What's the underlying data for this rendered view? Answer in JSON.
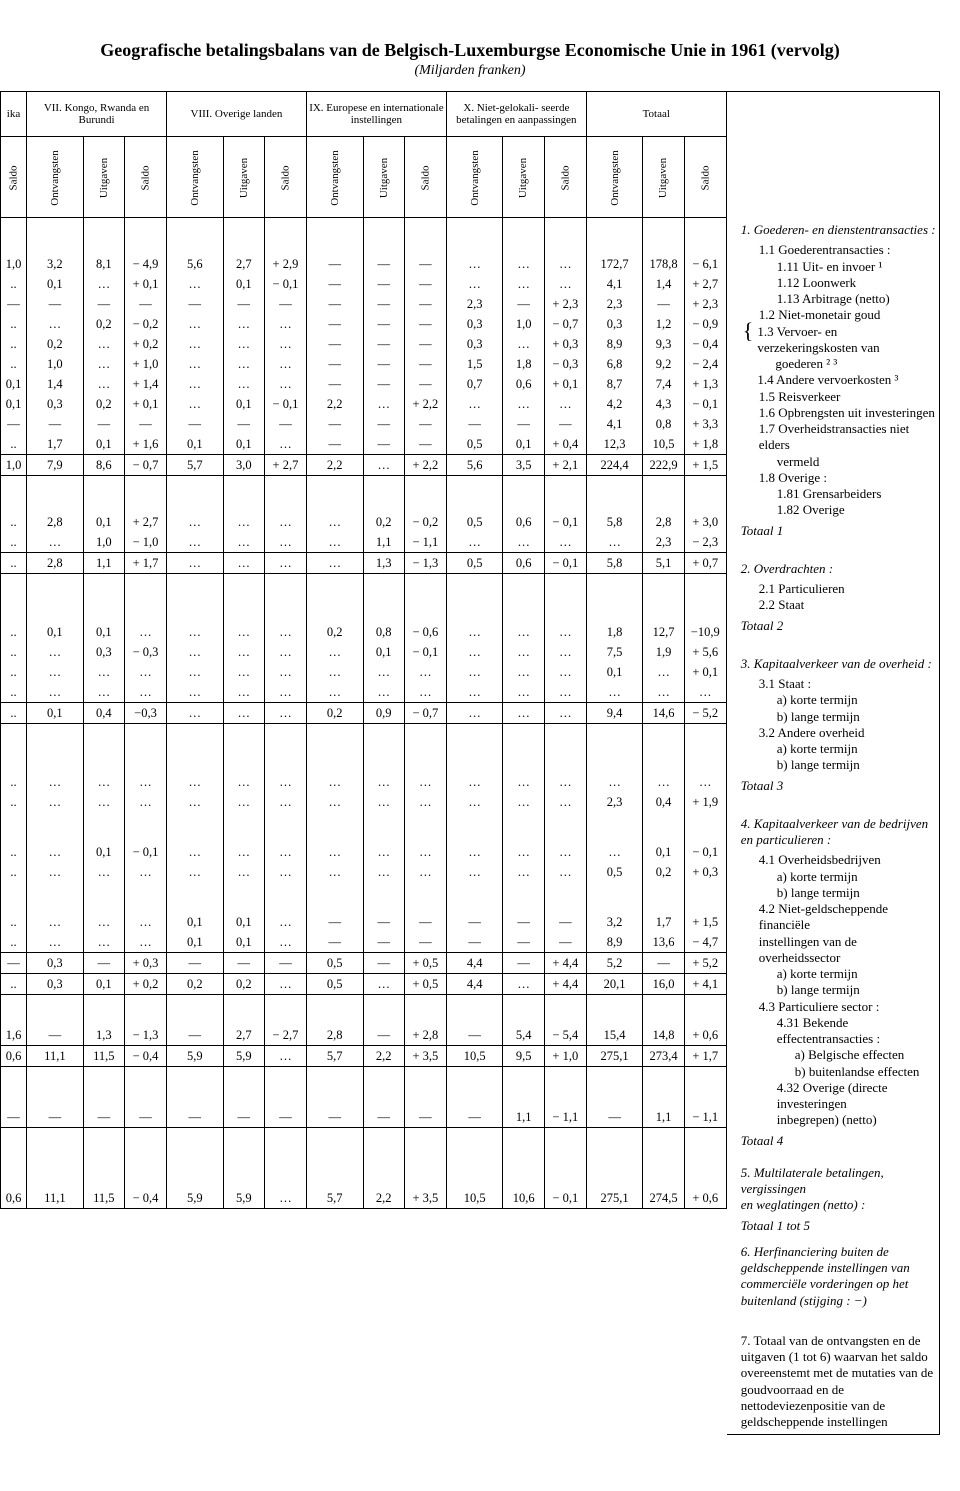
{
  "title": "Geografische betalingsbalans van de Belgisch-Luxemburgse Economische Unie in 1961 (vervolg)",
  "subtitle": "(Miljarden franken)",
  "col_ika": "ika",
  "groups": {
    "g7": "VII. Kongo,\nRwanda en Burundi",
    "g8": "VIII. Overige landen",
    "g9": "IX. Europese en\ninternationale\ninstellingen",
    "g10": "X. Niet-gelokali-\nseerde betalingen\nen aanpassingen",
    "gt": "Totaal"
  },
  "subheads": {
    "o": "Ontvangsten",
    "u": "Uitgaven",
    "s": "Saldo"
  },
  "rows": [
    [
      "1,0",
      "3,2",
      "8,1",
      "− 4,9",
      "5,6",
      "2,7",
      "+ 2,9",
      "—",
      "—",
      "—",
      "…",
      "…",
      "…",
      "172,7",
      "178,8",
      "− 6,1"
    ],
    [
      "..",
      "0,1",
      "…",
      "+ 0,1",
      "…",
      "0,1",
      "− 0,1",
      "—",
      "—",
      "—",
      "…",
      "…",
      "…",
      "4,1",
      "1,4",
      "+ 2,7"
    ],
    [
      "—",
      "—",
      "—",
      "—",
      "—",
      "—",
      "—",
      "—",
      "—",
      "—",
      "2,3",
      "—",
      "+ 2,3",
      "2,3",
      "—",
      "+ 2,3"
    ],
    [
      "..",
      "…",
      "0,2",
      "− 0,2",
      "…",
      "…",
      "…",
      "—",
      "—",
      "—",
      "0,3",
      "1,0",
      "− 0,7",
      "0,3",
      "1,2",
      "− 0,9"
    ],
    [
      "..",
      "0,2",
      "…",
      "+ 0,2",
      "…",
      "…",
      "…",
      "—",
      "—",
      "—",
      "0,3",
      "…",
      "+ 0,3",
      "8,9",
      "9,3",
      "− 0,4"
    ],
    [
      "..",
      "1,0",
      "…",
      "+ 1,0",
      "…",
      "…",
      "…",
      "—",
      "—",
      "—",
      "1,5",
      "1,8",
      "− 0,3",
      "6,8",
      "9,2",
      "− 2,4"
    ],
    [
      "0,1",
      "1,4",
      "…",
      "+ 1,4",
      "…",
      "…",
      "…",
      "—",
      "—",
      "—",
      "0,7",
      "0,6",
      "+ 0,1",
      "8,7",
      "7,4",
      "+ 1,3"
    ],
    [
      "0,1",
      "0,3",
      "0,2",
      "+ 0,1",
      "…",
      "0,1",
      "− 0,1",
      "2,2",
      "…",
      "+ 2,2",
      "…",
      "…",
      "…",
      "4,2",
      "4,3",
      "− 0,1"
    ],
    [
      "—",
      "—",
      "—",
      "—",
      "—",
      "—",
      "—",
      "—",
      "—",
      "—",
      "—",
      "—",
      "—",
      "4,1",
      "0,8",
      "+ 3,3"
    ],
    [
      "..",
      "1,7",
      "0,1",
      "+ 1,6",
      "0,1",
      "0,1",
      "…",
      "—",
      "—",
      "—",
      "0,5",
      "0,1",
      "+ 0,4",
      "12,3",
      "10,5",
      "+ 1,8"
    ]
  ],
  "row_t1": [
    "1,0",
    "7,9",
    "8,6",
    "− 0,7",
    "5,7",
    "3,0",
    "+ 2,7",
    "2,2",
    "…",
    "+ 2,2",
    "5,6",
    "3,5",
    "+ 2,1",
    "224,4",
    "222,9",
    "+ 1,5"
  ],
  "rows2": [
    [
      "..",
      "2,8",
      "0,1",
      "+ 2,7",
      "…",
      "…",
      "…",
      "…",
      "0,2",
      "− 0,2",
      "0,5",
      "0,6",
      "− 0,1",
      "5,8",
      "2,8",
      "+ 3,0"
    ],
    [
      "..",
      "…",
      "1,0",
      "− 1,0",
      "…",
      "…",
      "…",
      "…",
      "1,1",
      "− 1,1",
      "…",
      "…",
      "…",
      "…",
      "2,3",
      "− 2,3"
    ]
  ],
  "row_t2": [
    "..",
    "2,8",
    "1,1",
    "+ 1,7",
    "…",
    "…",
    "…",
    "…",
    "1,3",
    "− 1,3",
    "0,5",
    "0,6",
    "− 0,1",
    "5,8",
    "5,1",
    "+ 0,7"
  ],
  "rows3": [
    [
      "..",
      "0,1",
      "0,1",
      "…",
      "…",
      "…",
      "…",
      "0,2",
      "0,8",
      "− 0,6",
      "…",
      "…",
      "…",
      "1,8",
      "12,7",
      "−10,9"
    ],
    [
      "..",
      "…",
      "0,3",
      "− 0,3",
      "…",
      "…",
      "…",
      "…",
      "0,1",
      "− 0,1",
      "…",
      "…",
      "…",
      "7,5",
      "1,9",
      "+ 5,6"
    ],
    [
      "..",
      "…",
      "…",
      "…",
      "…",
      "…",
      "…",
      "…",
      "…",
      "…",
      "…",
      "…",
      "…",
      "0,1",
      "…",
      "+ 0,1"
    ],
    [
      "..",
      "…",
      "…",
      "…",
      "…",
      "…",
      "…",
      "…",
      "…",
      "…",
      "…",
      "…",
      "…",
      "…",
      "…",
      "…"
    ]
  ],
  "row_t3": [
    "..",
    "0,1",
    "0,4",
    "−0,3",
    "…",
    "…",
    "…",
    "0,2",
    "0,9",
    "− 0,7",
    "…",
    "…",
    "…",
    "9,4",
    "14,6",
    "− 5,2"
  ],
  "rows4": [
    [
      "..",
      "…",
      "…",
      "…",
      "…",
      "…",
      "…",
      "…",
      "…",
      "…",
      "…",
      "…",
      "…",
      "…",
      "…",
      "…"
    ],
    [
      "..",
      "…",
      "…",
      "…",
      "…",
      "…",
      "…",
      "…",
      "…",
      "…",
      "…",
      "…",
      "…",
      "2,3",
      "0,4",
      "+ 1,9"
    ],
    [
      "..",
      "…",
      "0,1",
      "− 0,1",
      "…",
      "…",
      "…",
      "…",
      "…",
      "…",
      "…",
      "…",
      "…",
      "…",
      "0,1",
      "− 0,1"
    ],
    [
      "..",
      "…",
      "…",
      "…",
      "…",
      "…",
      "…",
      "…",
      "…",
      "…",
      "…",
      "…",
      "…",
      "0,5",
      "0,2",
      "+ 0,3"
    ],
    [
      "..",
      "…",
      "…",
      "…",
      "0,1",
      "0,1",
      "…",
      "—",
      "—",
      "—",
      "—",
      "—",
      "—",
      "3,2",
      "1,7",
      "+ 1,5"
    ],
    [
      "..",
      "…",
      "…",
      "…",
      "0,1",
      "0,1",
      "…",
      "—",
      "—",
      "—",
      "—",
      "—",
      "—",
      "8,9",
      "13,6",
      "− 4,7"
    ],
    [
      "—",
      "0,3",
      "—",
      "+ 0,3",
      "—",
      "—",
      "—",
      "0,5",
      "—",
      "+ 0,5",
      "4,4",
      "—",
      "+ 4,4",
      "5,2",
      "—",
      "+ 5,2"
    ]
  ],
  "row_t4": [
    "..",
    "0,3",
    "0,1",
    "+ 0,2",
    "0,2",
    "0,2",
    "…",
    "0,5",
    "…",
    "+ 0,5",
    "4,4",
    "…",
    "+ 4,4",
    "20,1",
    "16,0",
    "+ 4,1"
  ],
  "row_5": [
    "1,6",
    "—",
    "1,3",
    "− 1,3",
    "—",
    "2,7",
    "− 2,7",
    "2,8",
    "—",
    "+ 2,8",
    "—",
    "5,4",
    "− 5,4",
    "15,4",
    "14,8",
    "+ 0,6"
  ],
  "row_t15": [
    "0,6",
    "11,1",
    "11,5",
    "− 0,4",
    "5,9",
    "5,9",
    "…",
    "5,7",
    "2,2",
    "+ 3,5",
    "10,5",
    "9,5",
    "+ 1,0",
    "275,1",
    "273,4",
    "+ 1,7"
  ],
  "row_6": [
    "—",
    "—",
    "—",
    "—",
    "—",
    "—",
    "—",
    "—",
    "—",
    "—",
    "—",
    "1,1",
    "− 1,1",
    "—",
    "1,1",
    "− 1,1"
  ],
  "row_7": [
    "0,6",
    "11,1",
    "11,5",
    "− 0,4",
    "5,9",
    "5,9",
    "…",
    "5,7",
    "2,2",
    "+ 3,5",
    "10,5",
    "10,6",
    "− 0,1",
    "275,1",
    "274,5",
    "+ 0,6"
  ],
  "side": {
    "s1h": "1. Goederen- en dienstentransacties :",
    "s11": "1.1 Goederentransacties :",
    "s111": "1.11 Uit- en invoer ¹",
    "s112": "1.12 Loonwerk",
    "s113": "1.13 Arbitrage (netto)",
    "s12": "1.2 Niet-monetair goud",
    "s13a": "1.3 Vervoer- en verzekeringskosten van",
    "s13b": "goederen ² ³",
    "s14": "1.4 Andere vervoerkosten ³",
    "s15": "1.5 Reisverkeer",
    "s16": "1.6 Opbrengsten uit investeringen",
    "s17a": "1.7 Overheidstransacties niet elders",
    "s17b": "vermeld",
    "s18": "1.8 Overige :",
    "s181": "1.81 Grensarbeiders",
    "s182": "1.82 Overige",
    "t1": "Totaal 1",
    "s2h": "2. Overdrachten :",
    "s21": "2.1 Particulieren",
    "s22": "2.2 Staat",
    "t2": "Totaal 2",
    "s3h": "3. Kapitaalverkeer van de overheid :",
    "s31": "3.1 Staat :",
    "s31a": "a) korte termijn",
    "s31b": "b) lange termijn",
    "s32": "3.2 Andere overheid",
    "s32a": "a) korte termijn",
    "s32b": "b) lange termijn",
    "t3": "Totaal 3",
    "s4h": "4. Kapitaalverkeer van de bedrijven en particulieren :",
    "s41": "4.1 Overheidsbedrijven",
    "s41a": "a) korte termijn",
    "s41b": "b) lange termijn",
    "s42a": "4.2 Niet-geldscheppende financiële",
    "s42b": "instellingen van de overheidssector",
    "s42aa": "a) korte termijn",
    "s42bb": "b) lange termijn",
    "s43": "4.3 Particuliere sector :",
    "s431a": "4.31 Bekende",
    "s431b": "effectentransacties :",
    "s431aa": "a) Belgische effecten",
    "s431bb": "b) buitenlandse effecten",
    "s432a": "4.32 Overige (directe investeringen",
    "s432b": "inbegrepen) (netto)",
    "t4": "Totaal 4",
    "s5a": "5. Multilaterale betalingen, vergissingen",
    "s5b": "en weglatingen (netto) :",
    "t15": "Totaal 1 tot 5",
    "s6a": "6. Herfinanciering buiten de geldscheppende instellingen van commerciële vorderingen op het buitenland (stijging : −)",
    "s7a": "7. Totaal van de ontvangsten en de uitgaven (1 tot 6) waarvan het saldo overeenstemt met de mutaties van de goudvoorraad en de nettodeviezenpositie van de geldscheppende instellingen"
  }
}
